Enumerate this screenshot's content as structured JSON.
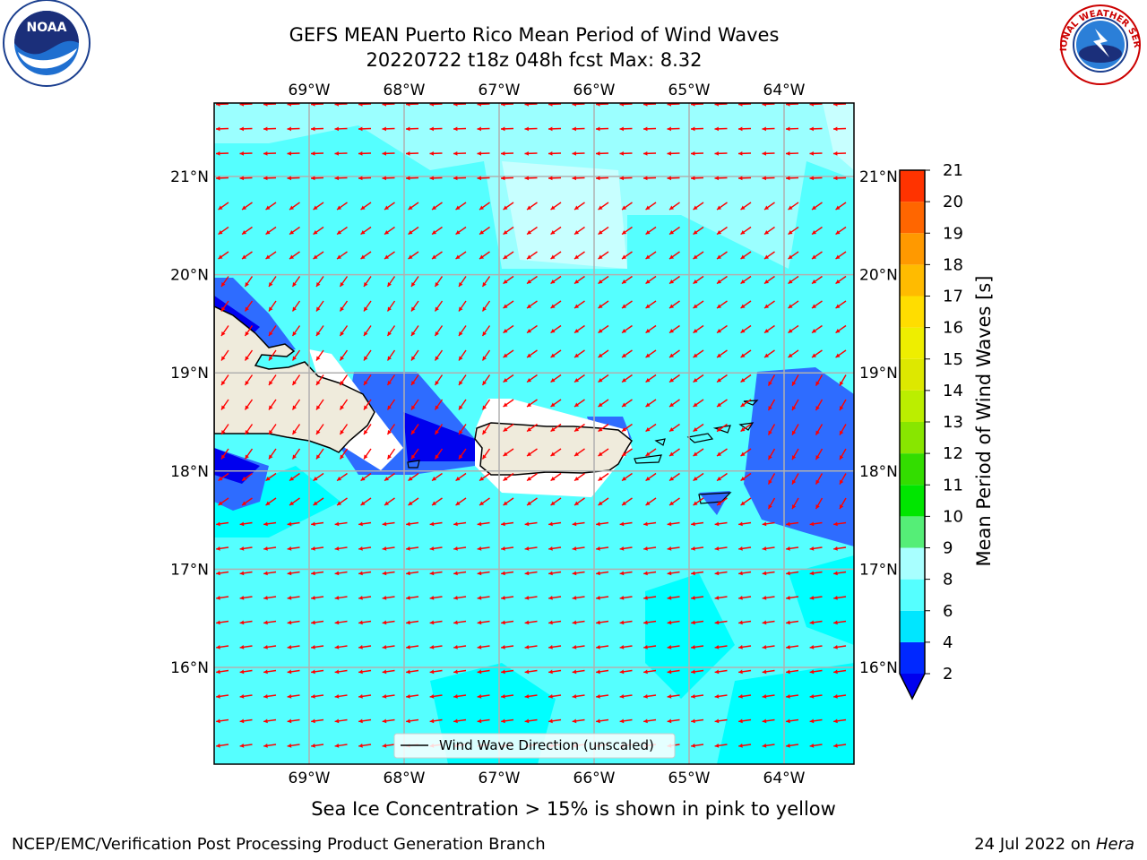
{
  "title": {
    "line1": "GEFS MEAN Puerto Rico Mean Period of Wind Waves",
    "line2": "20220722 t18z 048h fcst   Max: 8.32"
  },
  "logos": {
    "left": "noaa-logo",
    "left_text": "NOAA",
    "right": "nws-logo",
    "right_text": "NATIONAL WEATHER SERVICE"
  },
  "map": {
    "lon_labels": [
      "69°W",
      "68°W",
      "67°W",
      "66°W",
      "65°W",
      "64°W"
    ],
    "lat_labels": [
      "21°N",
      "20°N",
      "19°N",
      "18°N",
      "17°N",
      "16°N"
    ],
    "legend_label": "Wind Wave Direction (unscaled)",
    "arrow_color": "#ff0000",
    "land_color": "#efebdc",
    "ocean_colors": [
      "#0000ee",
      "#2e6cff",
      "#00ffff",
      "#55ffff",
      "#9bffff",
      "#c8ffff"
    ]
  },
  "colorbar": {
    "label": "Mean Period of Wind Waves [s]",
    "ticks": [
      "2",
      "4",
      "6",
      "8",
      "9",
      "10",
      "11",
      "12",
      "13",
      "14",
      "15",
      "16",
      "17",
      "18",
      "19",
      "20",
      "21"
    ],
    "colors": [
      "#0028ff",
      "#00e6ff",
      "#55ffff",
      "#a8ffff",
      "#55ee77",
      "#00e600",
      "#33dd00",
      "#88e600",
      "#bbee00",
      "#dde800",
      "#eeee00",
      "#ffdd00",
      "#ffbb00",
      "#ff9900",
      "#ff6600",
      "#ff3300",
      "#ff0000"
    ],
    "under_color": "#0000ee"
  },
  "ice_note": "Sea Ice Concentration > 15% is shown in pink to yellow",
  "footer": {
    "left": "NCEP/EMC/Verification Post Processing Product Generation Branch",
    "right_prefix": "24 Jul 2022 on ",
    "right_machine": "Hera"
  }
}
